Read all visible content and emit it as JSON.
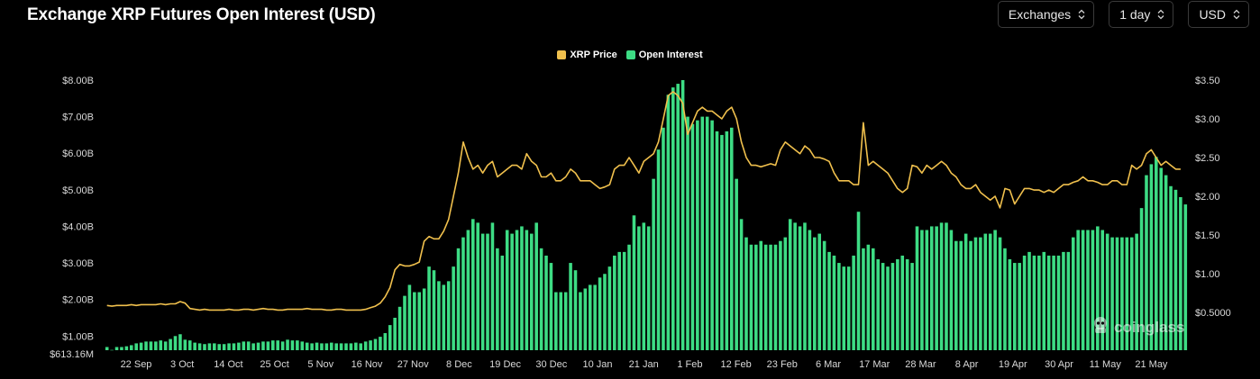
{
  "title": "Exchange XRP Futures Open Interest (USD)",
  "controls": [
    {
      "label": "Exchanges"
    },
    {
      "label": "1 day"
    },
    {
      "label": "USD"
    }
  ],
  "legend": [
    {
      "name": "XRP Price",
      "color": "#f0c04d"
    },
    {
      "name": "Open Interest",
      "color": "#3ddc84"
    }
  ],
  "watermark": "coinglass",
  "colors": {
    "background": "#000000",
    "bar": "#3ddc84",
    "line": "#f0c04d"
  },
  "chart_data": {
    "type": "bar",
    "x_tick_labels": [
      "22 Sep",
      "3 Oct",
      "14 Oct",
      "25 Oct",
      "5 Nov",
      "16 Nov",
      "27 Nov",
      "8 Dec",
      "19 Dec",
      "30 Dec",
      "10 Jan",
      "21 Jan",
      "1 Feb",
      "12 Feb",
      "23 Feb",
      "6 Mar",
      "17 Mar",
      "28 Mar",
      "8 Apr",
      "19 Apr",
      "30 Apr",
      "11 May",
      "21 May"
    ],
    "left_axis": {
      "ticks": [
        "$8.00B",
        "$7.00B",
        "$6.00B",
        "$5.00B",
        "$4.00B",
        "$3.00B",
        "$2.00B",
        "$1.00B",
        "$613.16M"
      ],
      "ylim": [
        0.61316,
        8.0
      ]
    },
    "right_axis": {
      "ticks": [
        "$3.50",
        "$3.00",
        "$2.50",
        "$2.00",
        "$1.50",
        "$1.00",
        "$0.5000"
      ],
      "ylim": [
        0.5,
        3.5
      ]
    },
    "series": [
      {
        "name": "Open Interest",
        "axis": "left",
        "type": "bar",
        "values": [
          0.7,
          0.62,
          0.7,
          0.7,
          0.72,
          0.75,
          0.8,
          0.82,
          0.85,
          0.85,
          0.85,
          0.88,
          0.85,
          0.92,
          1.0,
          1.05,
          0.9,
          0.88,
          0.82,
          0.8,
          0.78,
          0.8,
          0.8,
          0.78,
          0.78,
          0.8,
          0.8,
          0.82,
          0.85,
          0.85,
          0.8,
          0.82,
          0.85,
          0.85,
          0.88,
          0.88,
          0.85,
          0.9,
          0.88,
          0.88,
          0.85,
          0.82,
          0.8,
          0.82,
          0.8,
          0.8,
          0.82,
          0.8,
          0.8,
          0.8,
          0.8,
          0.82,
          0.8,
          0.85,
          0.88,
          0.92,
          0.98,
          1.08,
          1.3,
          1.5,
          1.8,
          2.1,
          2.4,
          2.2,
          2.2,
          2.3,
          2.9,
          2.8,
          2.5,
          2.4,
          2.5,
          2.9,
          3.4,
          3.7,
          3.9,
          4.2,
          4.1,
          3.8,
          3.8,
          4.1,
          3.4,
          3.2,
          3.9,
          3.8,
          3.9,
          4.0,
          3.9,
          3.8,
          4.1,
          3.4,
          3.2,
          3.0,
          2.2,
          2.2,
          2.2,
          3.0,
          2.8,
          2.2,
          2.3,
          2.4,
          2.4,
          2.6,
          2.7,
          2.9,
          3.2,
          3.3,
          3.3,
          3.5,
          4.3,
          4.0,
          4.1,
          4.0,
          5.3,
          6.1,
          6.7,
          7.6,
          7.8,
          7.9,
          8.0,
          7.0,
          6.8,
          6.9,
          7.0,
          7.0,
          6.9,
          6.6,
          6.5,
          6.6,
          6.7,
          5.3,
          4.2,
          3.7,
          3.5,
          3.5,
          3.6,
          3.5,
          3.5,
          3.5,
          3.6,
          3.7,
          4.2,
          4.1,
          4.0,
          4.1,
          3.9,
          3.7,
          3.8,
          3.6,
          3.3,
          3.2,
          3.0,
          2.9,
          2.9,
          3.2,
          4.4,
          3.4,
          3.5,
          3.4,
          3.1,
          3.0,
          2.9,
          3.0,
          3.1,
          3.2,
          3.1,
          3.0,
          4.0,
          3.9,
          3.9,
          4.0,
          4.0,
          4.1,
          4.1,
          3.9,
          3.6,
          3.6,
          3.8,
          3.6,
          3.7,
          3.7,
          3.8,
          3.8,
          3.9,
          3.7,
          3.4,
          3.1,
          3.0,
          3.0,
          3.2,
          3.3,
          3.2,
          3.2,
          3.3,
          3.2,
          3.2,
          3.2,
          3.3,
          3.3,
          3.7,
          3.9,
          3.9,
          3.9,
          3.9,
          4.0,
          3.9,
          3.8,
          3.7,
          3.7,
          3.7,
          3.7,
          3.7,
          3.8,
          4.5,
          5.4,
          5.7,
          5.9,
          5.6,
          5.4,
          5.1,
          5.0,
          4.8,
          4.6
        ]
      },
      {
        "name": "XRP Price",
        "axis": "right",
        "type": "line",
        "values": [
          0.59,
          0.58,
          0.59,
          0.59,
          0.59,
          0.6,
          0.59,
          0.6,
          0.6,
          0.6,
          0.6,
          0.61,
          0.6,
          0.61,
          0.61,
          0.64,
          0.62,
          0.55,
          0.54,
          0.53,
          0.54,
          0.53,
          0.53,
          0.53,
          0.53,
          0.54,
          0.53,
          0.53,
          0.54,
          0.54,
          0.53,
          0.54,
          0.55,
          0.54,
          0.54,
          0.53,
          0.53,
          0.54,
          0.54,
          0.54,
          0.54,
          0.55,
          0.54,
          0.54,
          0.54,
          0.53,
          0.53,
          0.54,
          0.54,
          0.53,
          0.53,
          0.53,
          0.53,
          0.54,
          0.56,
          0.58,
          0.62,
          0.7,
          0.82,
          1.05,
          1.12,
          1.1,
          1.1,
          1.12,
          1.15,
          1.42,
          1.48,
          1.45,
          1.45,
          1.55,
          1.7,
          2.0,
          2.3,
          2.7,
          2.5,
          2.35,
          2.4,
          2.3,
          2.4,
          2.45,
          2.25,
          2.3,
          2.35,
          2.4,
          2.4,
          2.35,
          2.55,
          2.45,
          2.4,
          2.25,
          2.25,
          2.3,
          2.2,
          2.2,
          2.25,
          2.35,
          2.3,
          2.2,
          2.2,
          2.2,
          2.15,
          2.1,
          2.12,
          2.15,
          2.35,
          2.4,
          2.4,
          2.5,
          2.4,
          2.3,
          2.45,
          2.5,
          2.55,
          2.7,
          3.0,
          3.3,
          3.35,
          3.3,
          3.2,
          2.8,
          2.95,
          3.1,
          3.15,
          3.1,
          3.1,
          3.05,
          3.0,
          3.1,
          3.15,
          3.0,
          2.7,
          2.5,
          2.4,
          2.4,
          2.38,
          2.4,
          2.42,
          2.4,
          2.6,
          2.7,
          2.65,
          2.6,
          2.55,
          2.65,
          2.6,
          2.5,
          2.5,
          2.48,
          2.45,
          2.3,
          2.2,
          2.2,
          2.2,
          2.15,
          2.15,
          2.95,
          2.4,
          2.45,
          2.4,
          2.35,
          2.3,
          2.2,
          2.1,
          2.05,
          2.1,
          2.4,
          2.38,
          2.3,
          2.4,
          2.35,
          2.4,
          2.45,
          2.4,
          2.3,
          2.25,
          2.15,
          2.1,
          2.1,
          2.15,
          2.05,
          2.0,
          1.95,
          2.0,
          1.85,
          2.1,
          2.08,
          1.9,
          2.0,
          2.1,
          2.1,
          2.08,
          2.08,
          2.05,
          2.08,
          2.05,
          2.1,
          2.15,
          2.15,
          2.18,
          2.2,
          2.25,
          2.2,
          2.2,
          2.18,
          2.15,
          2.15,
          2.2,
          2.2,
          2.15,
          2.15,
          2.4,
          2.35,
          2.4,
          2.55,
          2.6,
          2.5,
          2.4,
          2.45,
          2.4,
          2.35,
          2.35
        ]
      }
    ],
    "grid": false,
    "legend_position": "top-center"
  }
}
